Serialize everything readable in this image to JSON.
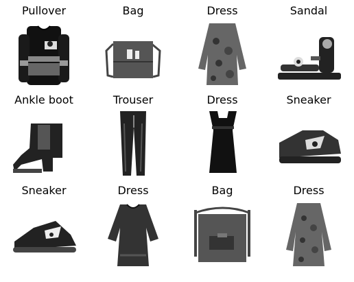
{
  "grid": {
    "rows": 3,
    "cols": 4,
    "cells": [
      {
        "label": "Pullover",
        "icon": "pullover-icon"
      },
      {
        "label": "Bag",
        "icon": "bag-icon"
      },
      {
        "label": "Dress",
        "icon": "dress-icon"
      },
      {
        "label": "Sandal",
        "icon": "sandal-icon"
      },
      {
        "label": "Ankle boot",
        "icon": "ankle-boot-icon"
      },
      {
        "label": "Trouser",
        "icon": "trouser-icon"
      },
      {
        "label": "Dress",
        "icon": "dress-icon"
      },
      {
        "label": "Sneaker",
        "icon": "sneaker-icon"
      },
      {
        "label": "Sneaker",
        "icon": "sneaker-icon"
      },
      {
        "label": "Dress",
        "icon": "dress-icon"
      },
      {
        "label": "Bag",
        "icon": "bag-icon"
      },
      {
        "label": "Dress",
        "icon": "dress-icon"
      }
    ]
  }
}
